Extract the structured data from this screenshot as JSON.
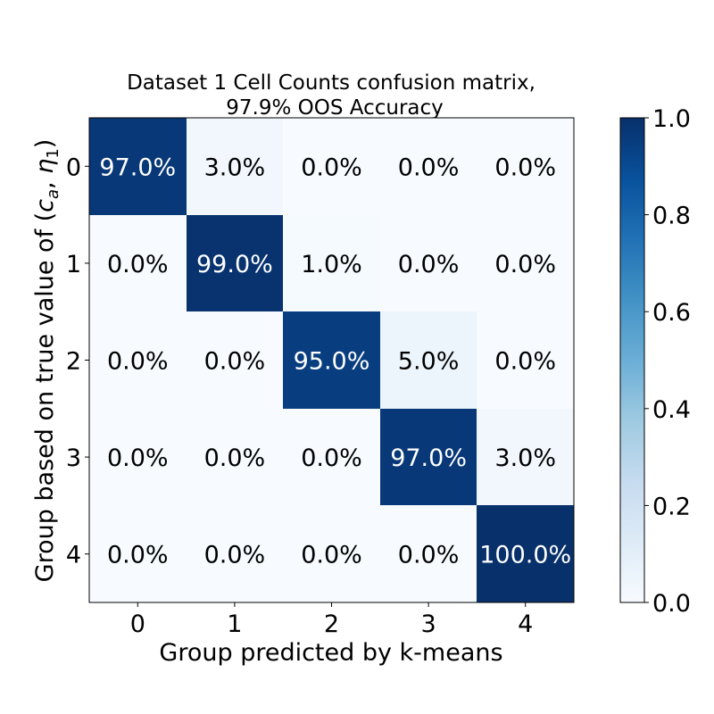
{
  "chart_data": {
    "type": "heatmap",
    "title_line1": "Dataset 1 Cell Counts confusion matrix,",
    "title_line2": "97.9% OOS Accuracy",
    "xlabel": "Group predicted by k-means",
    "ylabel": "Group based on true value of (c_a, η_1)",
    "x_categories": [
      "0",
      "1",
      "2",
      "3",
      "4"
    ],
    "y_categories": [
      "0",
      "1",
      "2",
      "3",
      "4"
    ],
    "values": [
      [
        0.97,
        0.03,
        0.0,
        0.0,
        0.0
      ],
      [
        0.0,
        0.99,
        0.01,
        0.0,
        0.0
      ],
      [
        0.0,
        0.0,
        0.95,
        0.05,
        0.0
      ],
      [
        0.0,
        0.0,
        0.0,
        0.97,
        0.03
      ],
      [
        0.0,
        0.0,
        0.0,
        0.0,
        1.0
      ]
    ],
    "cell_labels": [
      [
        "97.0%",
        "3.0%",
        "0.0%",
        "0.0%",
        "0.0%"
      ],
      [
        "0.0%",
        "99.0%",
        "1.0%",
        "0.0%",
        "0.0%"
      ],
      [
        "0.0%",
        "0.0%",
        "95.0%",
        "5.0%",
        "0.0%"
      ],
      [
        "0.0%",
        "0.0%",
        "0.0%",
        "97.0%",
        "3.0%"
      ],
      [
        "0.0%",
        "0.0%",
        "0.0%",
        "0.0%",
        "100.0%"
      ]
    ],
    "colormap": "Blues",
    "colormap_low": "#f7fbff",
    "colormap_high": "#08306b",
    "colorbar_range": [
      0.0,
      1.0
    ],
    "colorbar_ticks": [
      "0.0",
      "0.2",
      "0.4",
      "0.6",
      "0.8",
      "1.0"
    ],
    "legend": "colorbar-right",
    "grid": false
  }
}
